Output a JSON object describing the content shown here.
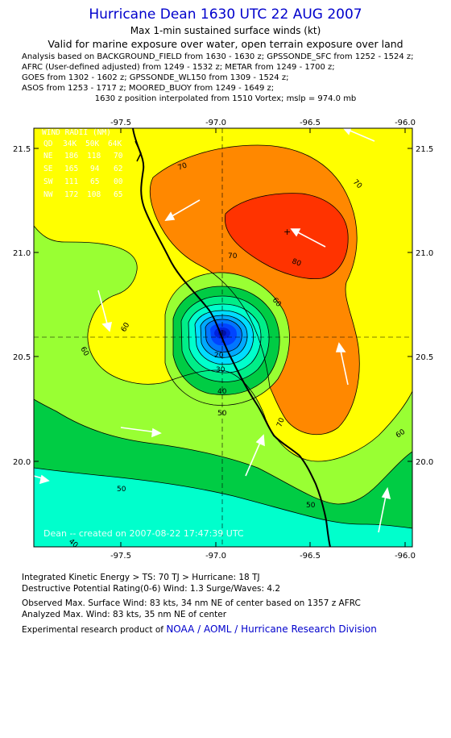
{
  "header": {
    "title": "Hurricane Dean 1630 UTC 22 AUG 2007",
    "subtitle": "Max 1-min sustained surface winds (kt)",
    "validity": "Valid for marine exposure over water, open terrain exposure over land"
  },
  "analysis_lines": [
    "Analysis based on  BACKGROUND_FIELD from 1630 - 1630 z;  GPSSONDE_SFC from 1252 - 1524 z;",
    "AFRC (User-defined adjusted) from 1249 - 1532 z;  METAR from 1249 - 1700 z;",
    "GOES from 1302 - 1602 z;  GPSSONDE_WL150 from 1309 - 1524 z;",
    "ASOS from 1253 - 1717 z;  MOORED_BUOY from 1249 - 1649 z;"
  ],
  "position_note": "1630 z position interpolated from 1510 Vortex; mslp = 974.0 mb",
  "map": {
    "lon_ticks": [
      "-97.5",
      "-97.0",
      "-96.5",
      "-96.0"
    ],
    "lat_ticks": [
      "21.5",
      "21.0",
      "20.5",
      "20.0"
    ],
    "wind_radii": {
      "title": "WIND RADII (NM)",
      "rows": [
        {
          "q": "QD",
          "a": "34K",
          "b": "50K",
          "c": "64K"
        },
        {
          "q": "NE",
          "a": "186",
          "b": "118",
          "c": "70"
        },
        {
          "q": "SE",
          "a": "165",
          "b": "94",
          "c": "62"
        },
        {
          "q": "SW",
          "a": "111",
          "b": "65",
          "c": "00"
        },
        {
          "q": "NW",
          "a": "172",
          "b": "108",
          "c": "65"
        }
      ]
    },
    "contour_labels": [
      "70",
      "70",
      "70",
      "80",
      "60",
      "60",
      "60",
      "50",
      "40",
      "30",
      "20",
      "70",
      "60",
      "50",
      "50",
      "40"
    ],
    "credit": "Dean -- created on 2007-08-22 17:47:39 UTC",
    "colors": {
      "c40": "#00ffcc",
      "c50": "#00cc44",
      "c60": "#99ff33",
      "c70": "#ffff00",
      "c80": "#ff8800",
      "c90": "#ff3300",
      "core": "#0033ff"
    }
  },
  "footer": {
    "ike": "Integrated Kinetic Energy > TS: 70 TJ   > Hurricane: 18 TJ",
    "dpr": "Destructive Potential Rating(0-6)   Wind: 1.3 Surge/Waves: 4.2",
    "observed": "Observed Max. Surface Wind: 83 kts, 34 nm NE of center based on 1357 z AFRC",
    "analyzed": "Analyzed Max. Wind: 83 kts, 35 nm NE of center",
    "product_prefix": "Experimental research product of",
    "organization": "NOAA / AOML / Hurricane Research Division"
  }
}
